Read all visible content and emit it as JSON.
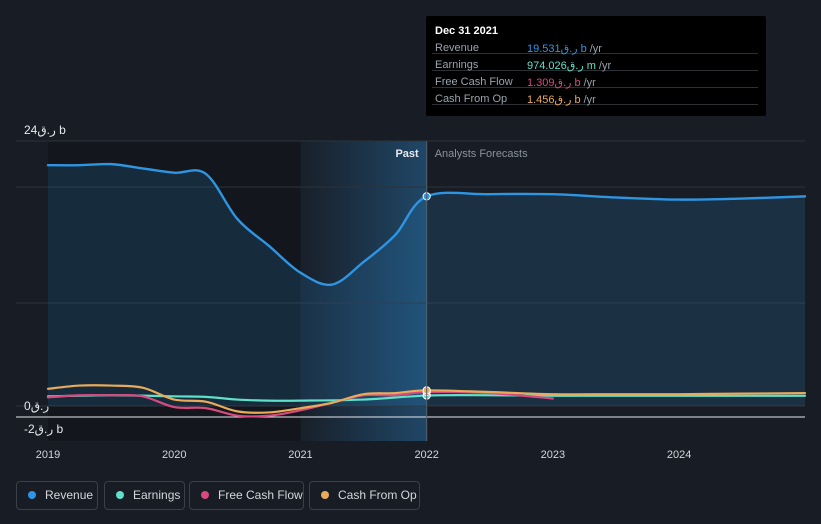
{
  "colors": {
    "revenue": "#2e95e3",
    "earnings": "#5fe0c8",
    "free_cash_flow": "#d9497f",
    "cash_from_op": "#e8ab5a",
    "background": "#181d25"
  },
  "tooltip": {
    "date": "Dec 31 2021",
    "rows": [
      {
        "label": "Revenue",
        "value": "19.531ر.ق b",
        "unit": "/yr"
      },
      {
        "label": "Earnings",
        "value": "974.026ر.ق m",
        "unit": "/yr"
      },
      {
        "label": "Free Cash Flow",
        "value": "1.309ر.ق b",
        "unit": "/yr"
      },
      {
        "label": "Cash From Op",
        "value": "1.456ر.ق b",
        "unit": "/yr"
      }
    ]
  },
  "legend": [
    {
      "label": "Revenue"
    },
    {
      "label": "Earnings"
    },
    {
      "label": "Free Cash Flow"
    },
    {
      "label": "Cash From Op"
    }
  ],
  "chart_data": {
    "type": "line",
    "y_tick_labels": [
      "24ر.ق b",
      "0ر.ق",
      "-2ر.ق b"
    ],
    "ylim": [
      -2,
      24
    ],
    "xlim": [
      2019.0,
      2024.997
    ],
    "x_tick_labels": [
      "2019",
      "2020",
      "2021",
      "2022",
      "2023",
      "2024"
    ],
    "x_tick_values": [
      2019,
      2020,
      2021,
      2022,
      2023,
      2024
    ],
    "divider_x": 2022.0,
    "highlight_range": [
      2021.0,
      2022.0
    ],
    "past_label": "Past",
    "forecast_label": "Analysts Forecasts",
    "series": [
      {
        "name": "Revenue",
        "color_key": "revenue",
        "fill": true,
        "x": [
          2019.0,
          2019.25,
          2019.5,
          2019.75,
          2020.0,
          2020.25,
          2020.5,
          2020.75,
          2021.0,
          2021.25,
          2021.5,
          2021.75,
          2022.0,
          2022.5,
          2023.0,
          2023.5,
          2024.0,
          2024.5,
          2024.997
        ],
        "y": [
          22.4,
          22.4,
          22.5,
          22.1,
          21.7,
          21.6,
          17.4,
          14.9,
          12.4,
          11.3,
          13.4,
          15.9,
          19.5,
          19.7,
          19.7,
          19.4,
          19.2,
          19.3,
          19.5
        ]
      },
      {
        "name": "Earnings",
        "color_key": "earnings",
        "fill": false,
        "x": [
          2019.0,
          2019.5,
          2020.0,
          2020.25,
          2020.5,
          2020.75,
          2021.0,
          2021.5,
          2022.0,
          2022.5,
          2023.0,
          2023.5,
          2024.0,
          2024.5,
          2024.997
        ],
        "y": [
          0.9,
          1.0,
          0.9,
          0.85,
          0.6,
          0.5,
          0.5,
          0.6,
          0.97,
          1.0,
          0.95,
          0.95,
          0.95,
          0.95,
          0.95
        ]
      },
      {
        "name": "Free Cash Flow",
        "color_key": "free_cash_flow",
        "fill": false,
        "x": [
          2019.0,
          2019.25,
          2019.5,
          2019.75,
          2020.0,
          2020.25,
          2020.5,
          2020.75,
          2021.0,
          2021.25,
          2021.5,
          2021.75,
          2022.0,
          2022.5,
          2023.0
        ],
        "y": [
          0.8,
          1.0,
          1.0,
          0.9,
          -0.1,
          -0.2,
          -0.9,
          -0.9,
          -0.4,
          0.3,
          1.0,
          1.0,
          1.3,
          1.2,
          0.7
        ]
      },
      {
        "name": "Cash From Op",
        "color_key": "cash_from_op",
        "fill": false,
        "x": [
          2019.0,
          2019.25,
          2019.5,
          2019.75,
          2020.0,
          2020.25,
          2020.5,
          2020.75,
          2021.0,
          2021.25,
          2021.5,
          2021.75,
          2022.0,
          2022.5,
          2023.0,
          2023.5,
          2024.0,
          2024.5,
          2024.997
        ],
        "y": [
          1.6,
          1.9,
          1.9,
          1.7,
          0.6,
          0.4,
          -0.5,
          -0.6,
          -0.2,
          0.3,
          1.1,
          1.2,
          1.46,
          1.3,
          1.1,
          1.1,
          1.1,
          1.15,
          1.2
        ]
      }
    ]
  }
}
